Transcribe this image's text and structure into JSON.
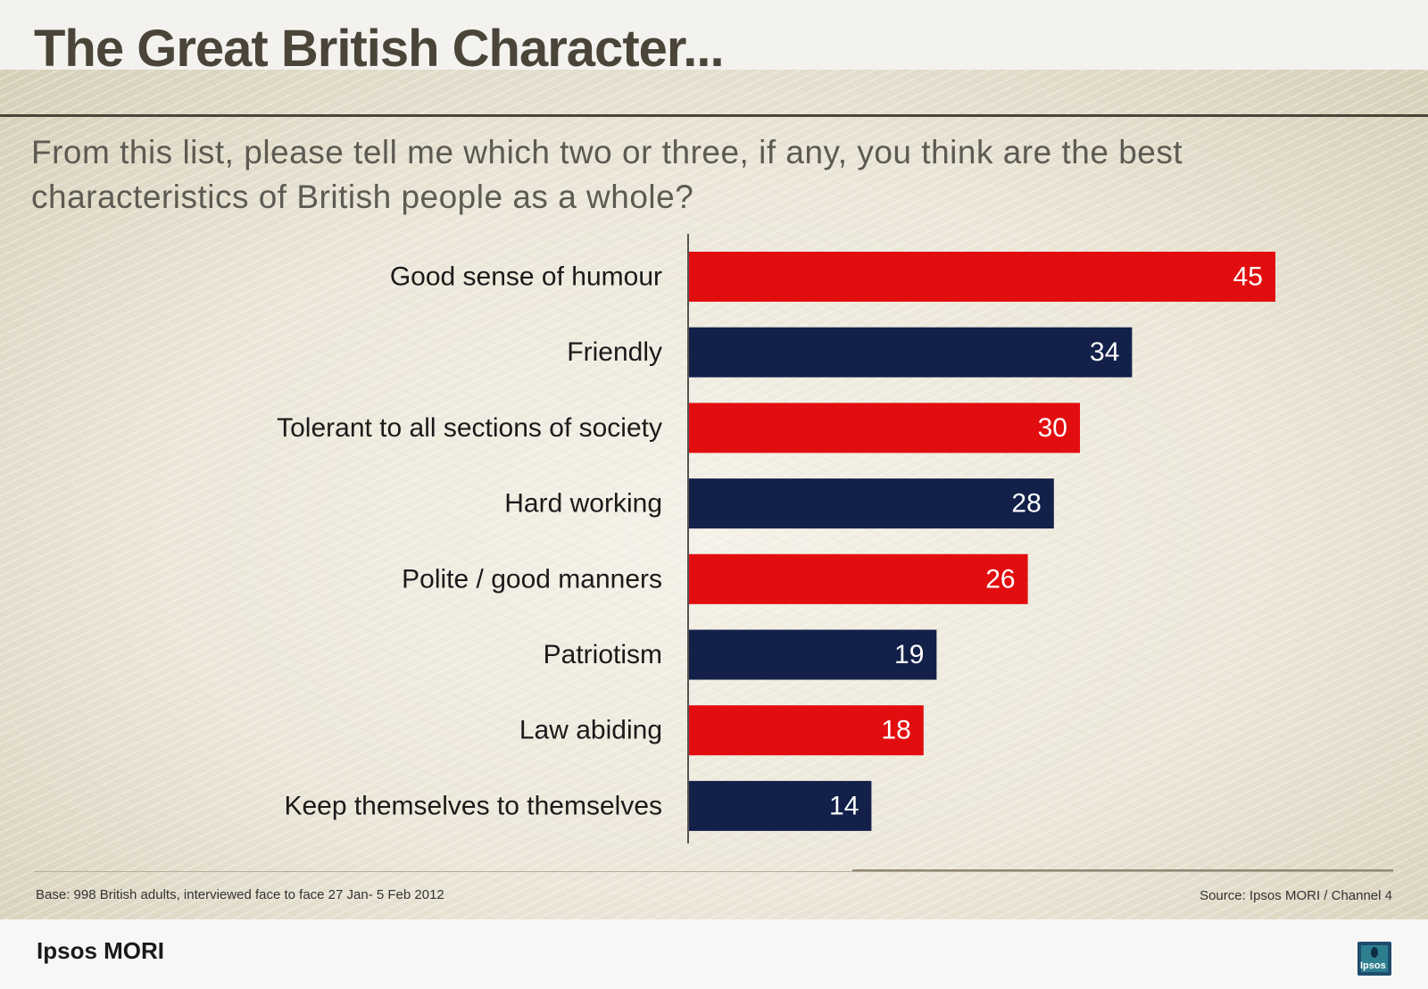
{
  "title": "The Great British Character...",
  "question": "From this list, please tell me which two or three, if any, you think are the best characteristics of British people as a whole?",
  "colors": {
    "red": "#e20d0f",
    "navy": "#13204a",
    "title_text": "#4a4538",
    "question_text": "#5c5a52"
  },
  "chart_data": {
    "type": "bar",
    "orientation": "horizontal",
    "title": "",
    "xlabel": "",
    "ylabel": "",
    "xlim": [
      0,
      50
    ],
    "grid": false,
    "legend": "none",
    "categories": [
      "Good sense of humour",
      "Friendly",
      "Tolerant to all sections of society",
      "Hard working",
      "Polite / good manners",
      "Patriotism",
      "Law abiding",
      "Keep themselves to themselves"
    ],
    "values": [
      45,
      34,
      30,
      28,
      26,
      19,
      18,
      14
    ],
    "bar_colors": [
      "red",
      "navy",
      "red",
      "navy",
      "red",
      "navy",
      "red",
      "navy"
    ]
  },
  "footnotes": {
    "base": "Base: 998 British adults, interviewed face to face 27 Jan- 5 Feb 2012",
    "source": "Source: Ipsos MORI / Channel 4"
  },
  "footer": {
    "brand": "Ipsos MORI",
    "logo_text": "Ipsos",
    "logo_icon": "ipsos-logo-icon"
  }
}
